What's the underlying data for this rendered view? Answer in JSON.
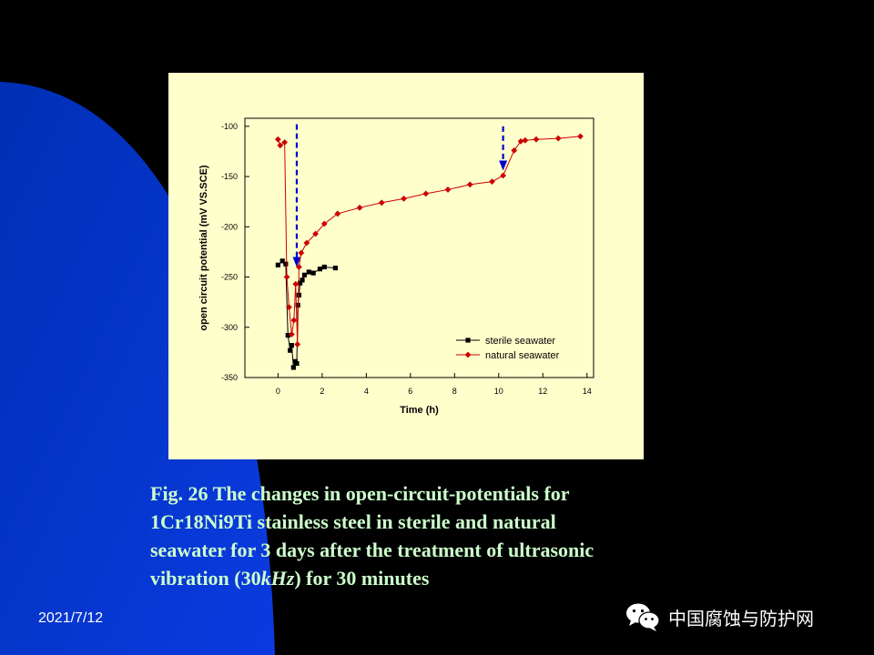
{
  "slide": {
    "date": "2021/7/12",
    "caption_lines": [
      "Fig. 26 The changes in open-circuit-potentials for",
      "1Cr18Ni9Ti stainless steel in sterile and natural",
      "seawater for 3 days after the treatment of ultrasonic",
      "vibration (30kHz) for 30 minutes"
    ],
    "watermark": "中国腐蚀与防护网",
    "watermark_icon": "wechat-icon",
    "colors": {
      "background": "#000000",
      "accent_blue": "#0a32d2",
      "chart_panel": "#ffffcc",
      "caption_text": "#ccffcc"
    }
  },
  "chart_data": {
    "type": "line",
    "xlabel": "Time (h)",
    "ylabel": "open circuit potential (mV VS.SCE)",
    "xlim": [
      -1.5,
      14.3
    ],
    "ylim": [
      -350,
      -92
    ],
    "xticks": [
      0,
      2,
      4,
      6,
      8,
      10,
      12,
      14
    ],
    "yticks": [
      -100,
      -150,
      -200,
      -250,
      -300,
      -350
    ],
    "grid": false,
    "legend_position": "bottom-right",
    "series": [
      {
        "name": "sterile seawater",
        "color": "#000000",
        "marker": "square",
        "x": [
          0.0,
          0.2,
          0.35,
          0.45,
          0.55,
          0.62,
          0.7,
          0.78,
          0.85,
          0.9,
          0.95,
          1.0,
          1.1,
          1.2,
          1.4,
          1.6,
          1.9,
          2.1,
          2.6
        ],
        "y": [
          -238,
          -234,
          -237,
          -308,
          -323,
          -318,
          -340,
          -334,
          -336,
          -278,
          -268,
          -256,
          -253,
          -248,
          -245,
          -246,
          -242,
          -240,
          -241
        ]
      },
      {
        "name": "natural seawater",
        "color": "#cc0000",
        "marker": "diamond",
        "x": [
          0.0,
          0.1,
          0.3,
          0.4,
          0.5,
          0.62,
          0.72,
          0.8,
          0.88,
          0.95,
          1.05,
          1.3,
          1.7,
          2.1,
          2.7,
          3.7,
          4.7,
          5.7,
          6.7,
          7.7,
          8.7,
          9.7,
          10.2,
          10.7,
          11.0,
          11.2,
          11.7,
          12.7,
          13.7
        ],
        "y": [
          -113,
          -119,
          -116,
          -250,
          -280,
          -307,
          -293,
          -257,
          -317,
          -240,
          -226,
          -216,
          -207,
          -197,
          -187,
          -181,
          -176,
          -172,
          -167,
          -163,
          -158,
          -155,
          -149,
          -124,
          -115,
          -114,
          -113,
          -112,
          -110
        ]
      }
    ],
    "annotations": [
      {
        "type": "dashed-arrow",
        "x": 0.85,
        "from_y": -98,
        "to_y": -240,
        "color": "#0000cc"
      },
      {
        "type": "dashed-arrow",
        "x": 10.2,
        "from_y": -100,
        "to_y": -144,
        "color": "#0000cc"
      }
    ]
  }
}
